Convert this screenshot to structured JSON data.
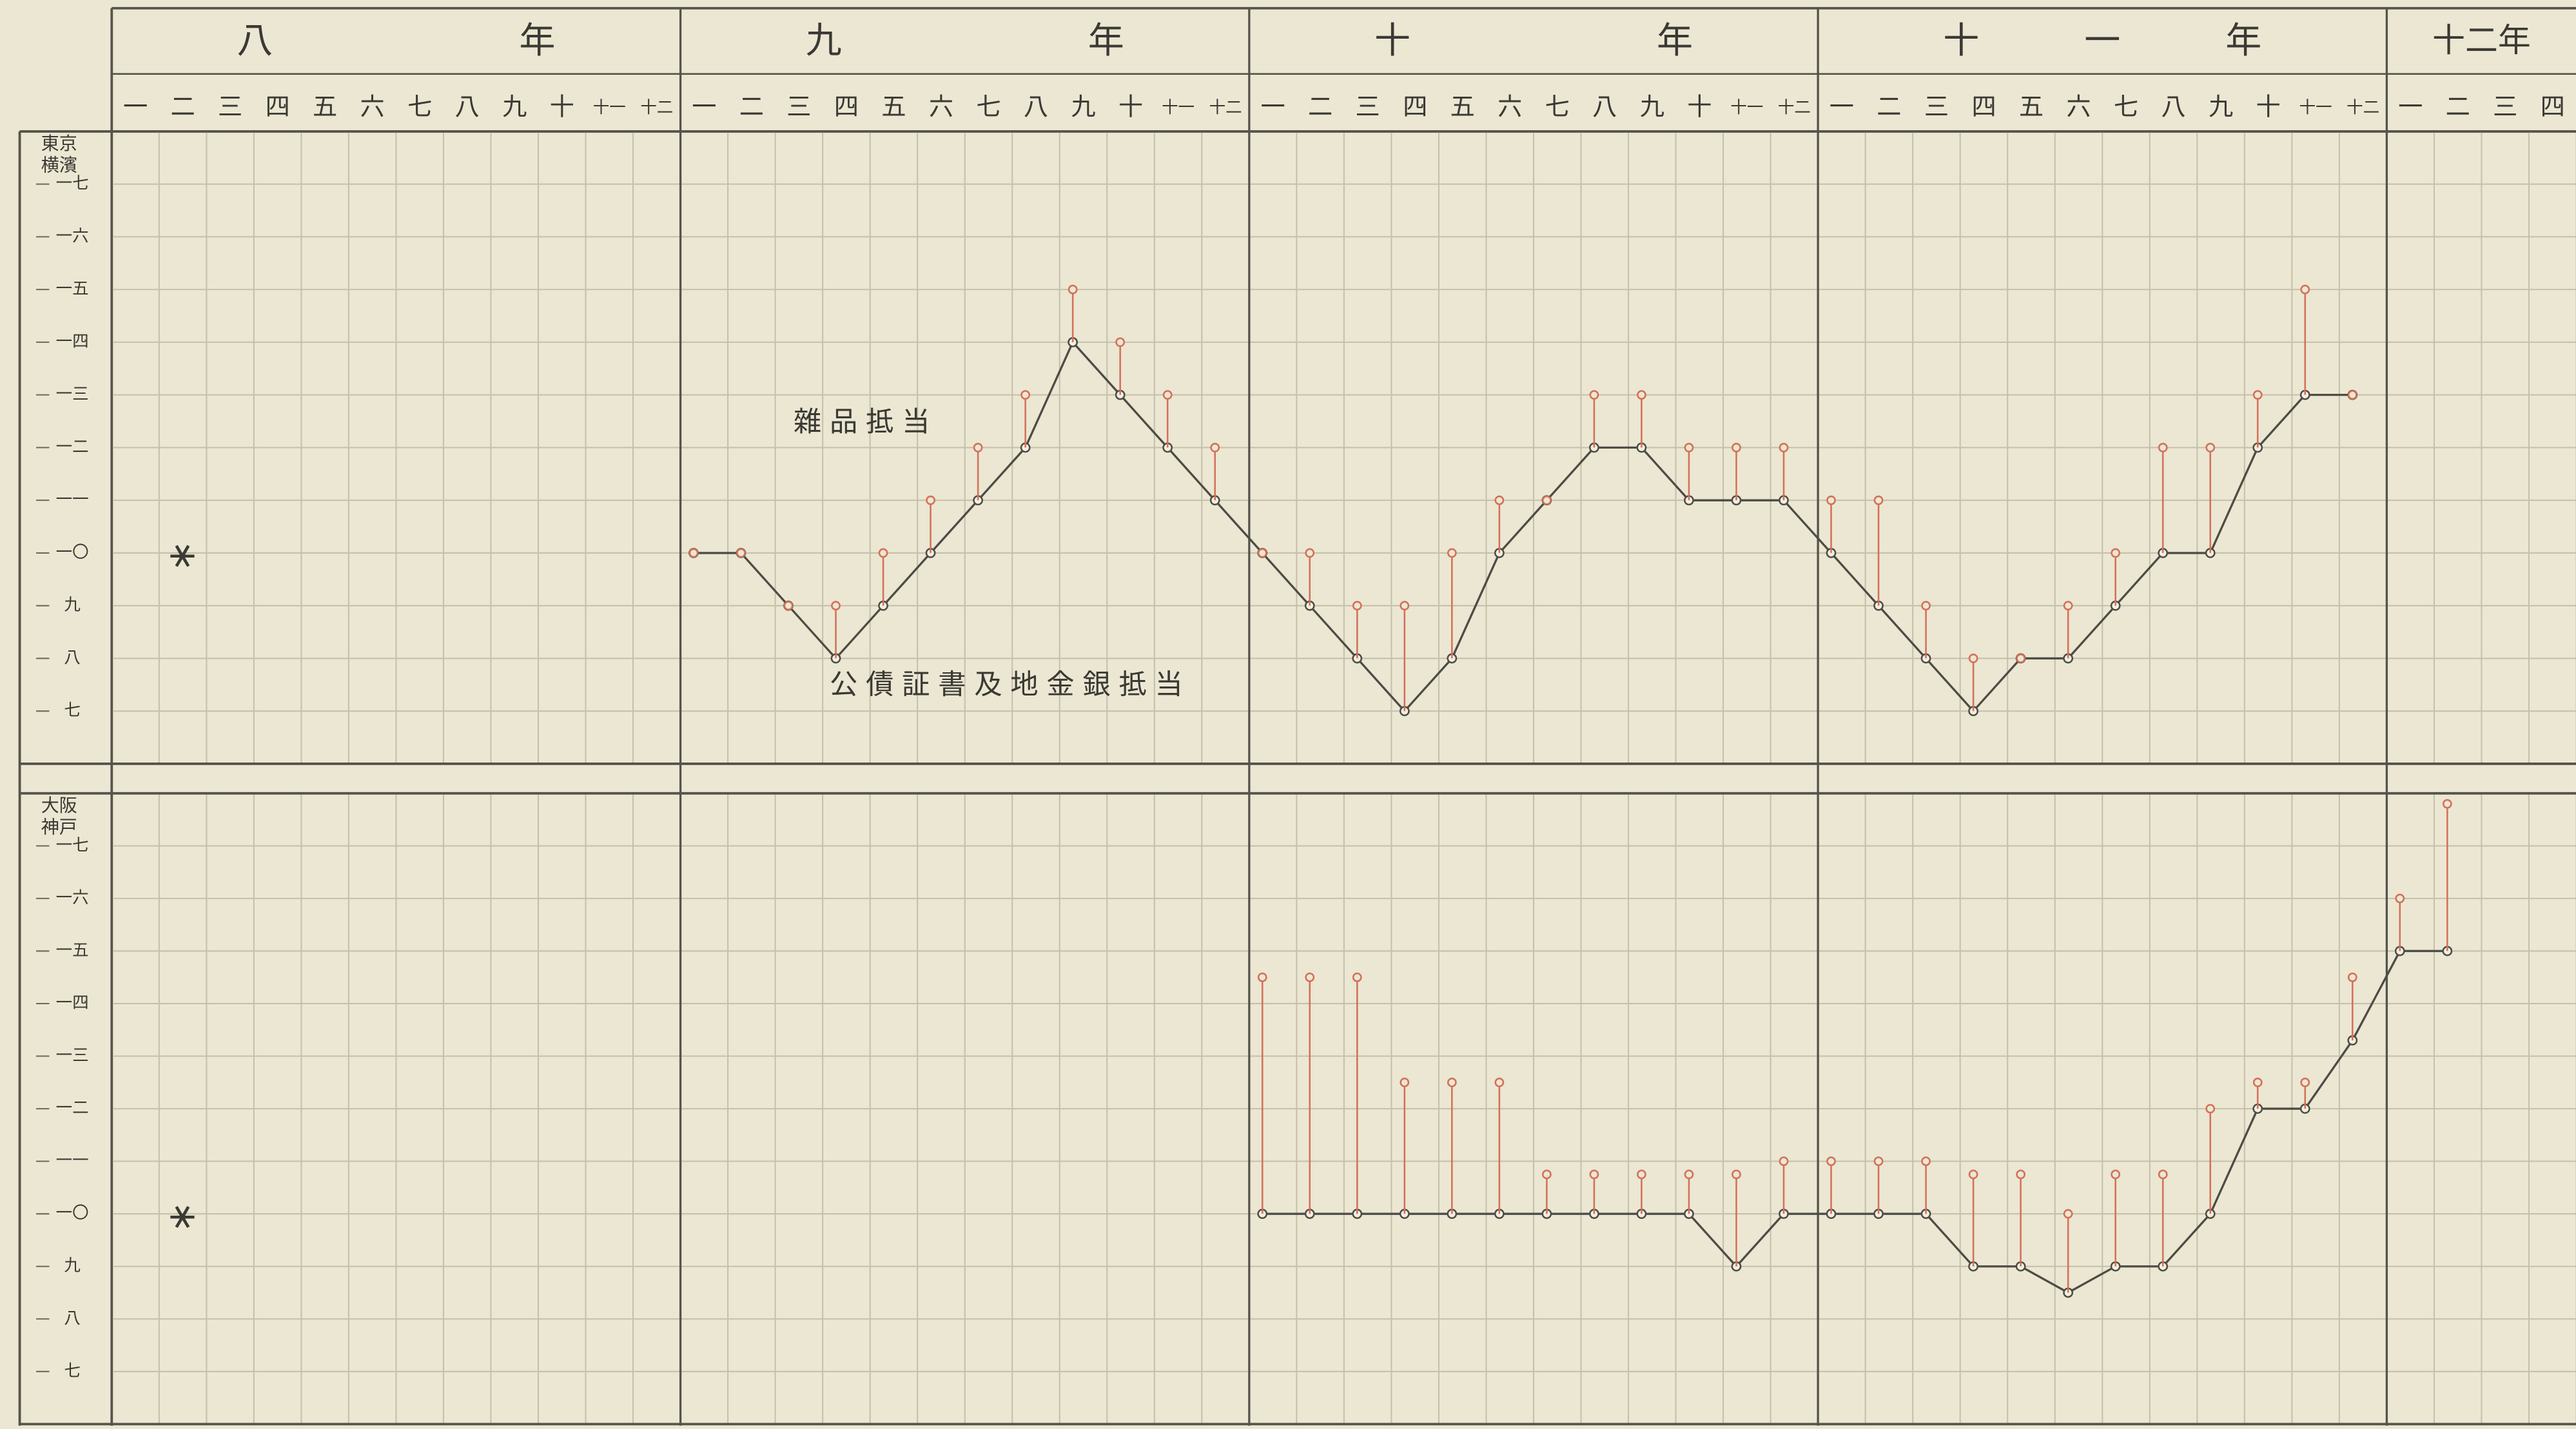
{
  "header": {
    "years": [
      {
        "label": "八年",
        "months": [
          "一",
          "二",
          "三",
          "四",
          "五",
          "六",
          "七",
          "八",
          "九",
          "十",
          "十一",
          "十二"
        ]
      },
      {
        "label": "九年",
        "months": [
          "一",
          "二",
          "三",
          "四",
          "五",
          "六",
          "七",
          "八",
          "九",
          "十",
          "十一",
          "十二"
        ]
      },
      {
        "label": "十年",
        "months": [
          "一",
          "二",
          "三",
          "四",
          "五",
          "六",
          "七",
          "八",
          "九",
          "十",
          "十一",
          "十二"
        ]
      },
      {
        "label": "十一年",
        "months": [
          "一",
          "二",
          "三",
          "四",
          "五",
          "六",
          "七",
          "八",
          "九",
          "十",
          "十一",
          "十二"
        ]
      },
      {
        "label": "十二年",
        "months": [
          "一",
          "二",
          "三",
          "四"
        ]
      }
    ]
  },
  "chart_data": [
    {
      "type": "line",
      "y_axis_title": [
        "東京",
        "横濱"
      ],
      "ylim": [
        6,
        18
      ],
      "yticks": [
        {
          "value": 17,
          "label": "一七"
        },
        {
          "value": 16,
          "label": "一六"
        },
        {
          "value": 15,
          "label": "一五"
        },
        {
          "value": 14,
          "label": "一四"
        },
        {
          "value": 13,
          "label": "一三"
        },
        {
          "value": 12,
          "label": "一二"
        },
        {
          "value": 11,
          "label": "一一"
        },
        {
          "value": 10,
          "label": "一〇"
        },
        {
          "value": 9,
          "label": "九"
        },
        {
          "value": 8,
          "label": "八"
        },
        {
          "value": 7,
          "label": "七"
        }
      ],
      "grid": true,
      "marker": "⚹",
      "series": [
        {
          "name": "公債証書及地金銀抵当",
          "color": "#4d4c46",
          "style": "line",
          "values": [
            null,
            null,
            null,
            null,
            null,
            null,
            null,
            null,
            null,
            null,
            null,
            null,
            10,
            10,
            9,
            8,
            9,
            10,
            11,
            12,
            14,
            13,
            12,
            11,
            10,
            9,
            8,
            7,
            8,
            10,
            11,
            12,
            12,
            11,
            11,
            11,
            10,
            9,
            8,
            7,
            8,
            8,
            9,
            10,
            10,
            12,
            13,
            13,
            null,
            null,
            null,
            null
          ]
        },
        {
          "name": "雜品抵当",
          "color": "#d4705a",
          "style": "stem",
          "values": [
            null,
            null,
            null,
            null,
            null,
            null,
            null,
            null,
            null,
            null,
            null,
            null,
            10,
            10,
            9,
            9,
            10,
            11,
            12,
            13,
            15,
            14,
            13,
            12,
            10,
            10,
            9,
            9,
            10,
            11,
            11,
            13,
            13,
            12,
            12,
            12,
            11,
            11,
            9,
            8,
            8,
            9,
            10,
            12,
            12,
            13,
            15,
            13,
            null,
            null,
            null,
            null
          ]
        }
      ]
    },
    {
      "type": "line",
      "y_axis_title": [
        "大阪",
        "神戸"
      ],
      "ylim": [
        6,
        18
      ],
      "yticks": [
        {
          "value": 17,
          "label": "一七"
        },
        {
          "value": 16,
          "label": "一六"
        },
        {
          "value": 15,
          "label": "一五"
        },
        {
          "value": 14,
          "label": "一四"
        },
        {
          "value": 13,
          "label": "一三"
        },
        {
          "value": 12,
          "label": "一二"
        },
        {
          "value": 11,
          "label": "一一"
        },
        {
          "value": 10,
          "label": "一〇"
        },
        {
          "value": 9,
          "label": "九"
        },
        {
          "value": 8,
          "label": "八"
        },
        {
          "value": 7,
          "label": "七"
        }
      ],
      "grid": true,
      "marker": "⚹",
      "series": [
        {
          "color": "#4d4c46",
          "style": "line",
          "values": [
            null,
            null,
            null,
            null,
            null,
            null,
            null,
            null,
            null,
            null,
            null,
            null,
            null,
            null,
            null,
            null,
            null,
            null,
            null,
            null,
            null,
            null,
            null,
            null,
            10,
            10,
            10,
            10,
            10,
            10,
            10,
            10,
            10,
            10,
            9,
            10,
            10,
            10,
            10,
            9,
            9,
            8.5,
            9,
            9,
            10,
            12,
            12,
            13.3,
            15,
            15,
            null,
            null
          ]
        },
        {
          "color": "#d4705a",
          "style": "stem",
          "values": [
            null,
            null,
            null,
            null,
            null,
            null,
            null,
            null,
            null,
            null,
            null,
            null,
            null,
            null,
            null,
            null,
            null,
            null,
            null,
            null,
            null,
            null,
            null,
            null,
            14.5,
            14.5,
            14.5,
            12.5,
            12.5,
            12.5,
            10.75,
            10.75,
            10.75,
            10.75,
            10.75,
            11,
            11,
            11,
            11,
            10.75,
            10.75,
            10,
            10.75,
            10.75,
            12,
            12.5,
            12.5,
            14.5,
            16,
            17.8,
            null,
            null
          ]
        }
      ]
    }
  ]
}
